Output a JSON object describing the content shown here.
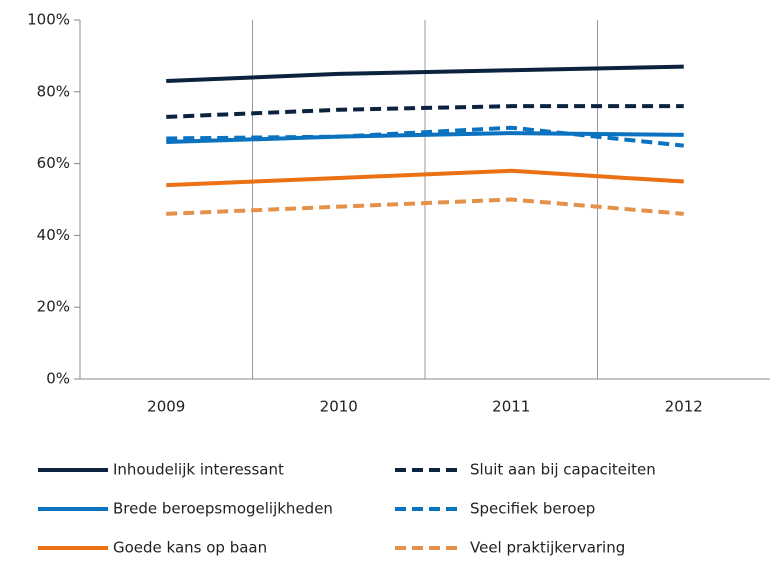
{
  "chart_data": {
    "type": "line",
    "categories": [
      "2009",
      "2010",
      "2011",
      "2012"
    ],
    "series": [
      {
        "name": "Inhoudelijk interessant",
        "color": "#0c2340",
        "dash": false,
        "values": [
          83,
          85,
          86,
          87
        ]
      },
      {
        "name": "Sluit aan bij capaciteiten",
        "color": "#0c2340",
        "dash": true,
        "values": [
          73,
          75,
          76,
          76
        ]
      },
      {
        "name": "Brede beroepsmogelijkheden",
        "color": "#0b72c0",
        "dash": false,
        "values": [
          66,
          67.5,
          68.5,
          68
        ]
      },
      {
        "name": "Specifiek beroep",
        "color": "#0b72c0",
        "dash": true,
        "values": [
          67,
          67.5,
          70,
          65
        ]
      },
      {
        "name": "Goede kans op baan",
        "color": "#ec7014",
        "dash": false,
        "values": [
          54,
          56,
          58,
          55
        ]
      },
      {
        "name": "Veel praktijkervaring",
        "color": "#e4914a",
        "dash": true,
        "values": [
          46,
          48,
          50,
          46
        ]
      }
    ],
    "ylim": [
      0,
      100
    ],
    "yticks": [
      {
        "value": 0,
        "label": "0%"
      },
      {
        "value": 20,
        "label": "20%"
      },
      {
        "value": 40,
        "label": "40%"
      },
      {
        "value": 60,
        "label": "60%"
      },
      {
        "value": 80,
        "label": "80%"
      },
      {
        "value": 100,
        "label": "100%"
      }
    ],
    "legend": "bottom"
  }
}
